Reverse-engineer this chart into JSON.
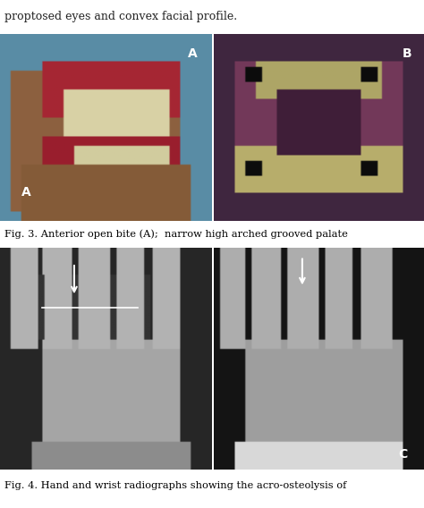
{
  "background_color": "#ffffff",
  "top_text": "proptosed eyes and convex facial profile.",
  "fig3_caption": "Fig. 3. Anterior open bite (A);  narrow high arched grooved palate",
  "fig4_caption": "Fig. 4. Hand and wrist radiographs showing the acro-osteolysis of",
  "label_A_top": "A",
  "label_B_top": "B",
  "label_A_bottom": "A",
  "label_C_bottom": "C",
  "top_text_color": "#222222",
  "fig3_text_color": "#000000",
  "fig4_text_color": "#000000",
  "label_color": "#ffffff",
  "bg_imgA": [
    0.35,
    0.55,
    0.65
  ],
  "bg_imgB": [
    0.25,
    0.15,
    0.25
  ],
  "bg_xrayL": 0.15,
  "bg_xrayR": 0.08
}
